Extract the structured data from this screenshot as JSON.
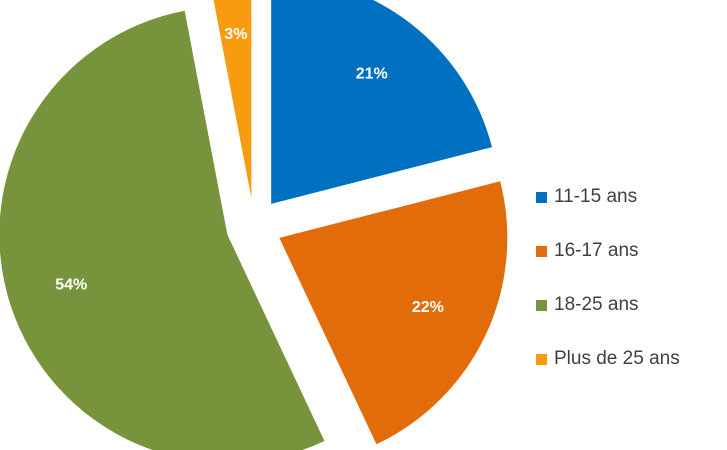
{
  "chart_data": {
    "type": "pie",
    "categories": [
      "11-15 ans",
      "16-17 ans",
      "18-25 ans",
      "Plus de 25 ans"
    ],
    "values": [
      21,
      22,
      54,
      3
    ],
    "data_labels": [
      "21%",
      "22%",
      "54%",
      "3%"
    ],
    "colors": [
      "#0070C0",
      "#E36C0A",
      "#77933C",
      "#F79B0F"
    ],
    "exploded": true,
    "legend_position": "right",
    "title": ""
  }
}
